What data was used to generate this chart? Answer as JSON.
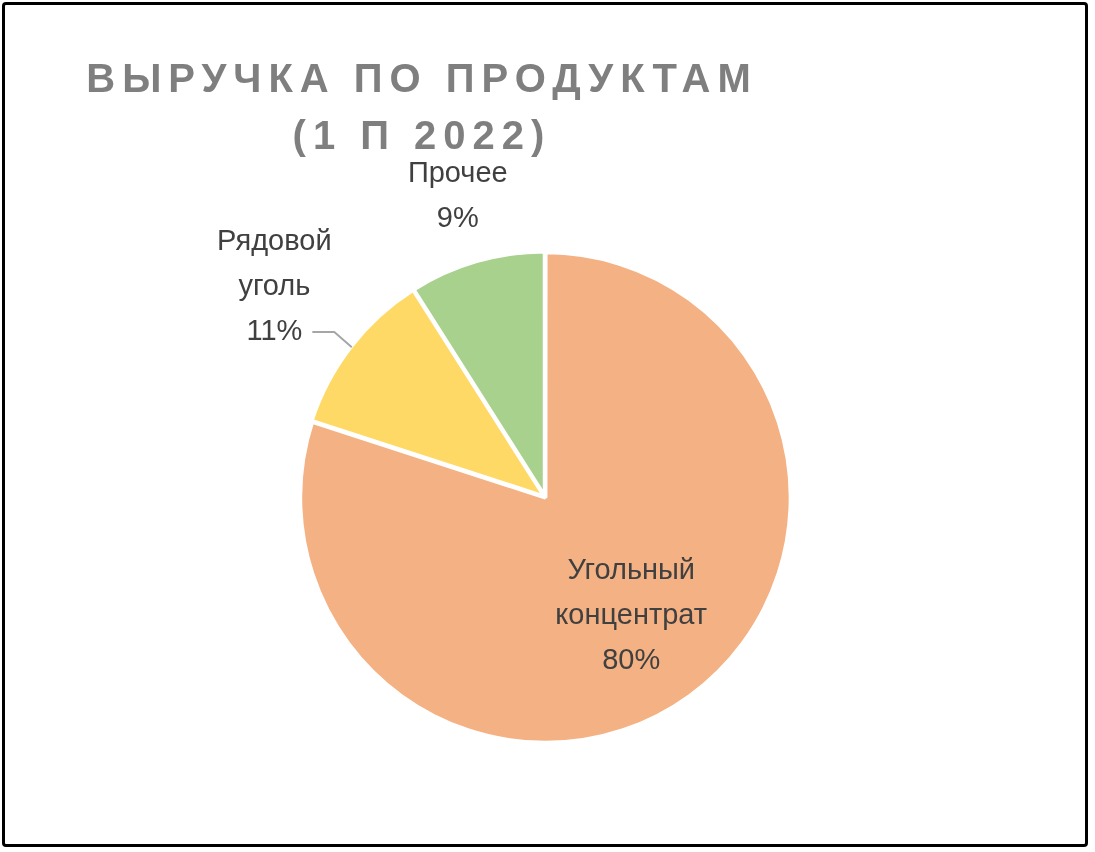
{
  "chart_data": {
    "type": "pie",
    "title": "ВЫРУЧКА ПО ПРОДУКТАМ (1 П 2022)",
    "categories": [
      "Угольный концентрат",
      "Рядовой уголь",
      "Прочее"
    ],
    "values": [
      80,
      11,
      9
    ],
    "value_labels": [
      "80%",
      "11%",
      "9%"
    ],
    "colors": [
      "#f4b183",
      "#ffd966",
      "#a9d18e"
    ]
  }
}
